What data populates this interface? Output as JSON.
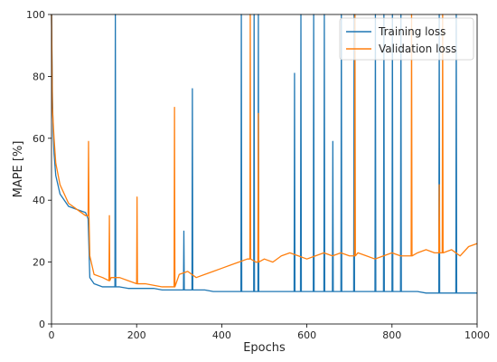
{
  "chart_data": {
    "type": "line",
    "xlabel": "Epochs",
    "ylabel": "MAPE [%]",
    "xlim": [
      0,
      1000
    ],
    "ylim": [
      0,
      100
    ],
    "xticks": [
      "0",
      "200",
      "400",
      "600",
      "800",
      "1000"
    ],
    "yticks": [
      "0",
      "20",
      "40",
      "60",
      "80",
      "100"
    ],
    "grid": false,
    "legend_position": "top-right",
    "series": [
      {
        "name": "Training loss",
        "color": "#1f77b4",
        "x": [
          0,
          2,
          4,
          6,
          10,
          20,
          40,
          60,
          80,
          86,
          90,
          100,
          120,
          140,
          149,
          150,
          151,
          160,
          180,
          200,
          220,
          240,
          260,
          280,
          300,
          310,
          311,
          312,
          320,
          330,
          331,
          332,
          340,
          360,
          380,
          400,
          420,
          440,
          445,
          446,
          447,
          450,
          460,
          470,
          475,
          476,
          477,
          480,
          485,
          486,
          487,
          490,
          500,
          520,
          540,
          560,
          570,
          571,
          572,
          580,
          585,
          586,
          587,
          590,
          600,
          610,
          615,
          616,
          617,
          620,
          630,
          640,
          641,
          642,
          650,
          660,
          661,
          662,
          670,
          680,
          681,
          682,
          690,
          700,
          710,
          711,
          712,
          720,
          740,
          760,
          761,
          762,
          770,
          780,
          781,
          782,
          790,
          800,
          801,
          802,
          810,
          820,
          821,
          822,
          830,
          840,
          850,
          860,
          880,
          900,
          910,
          911,
          912,
          920,
          940,
          950,
          951,
          952,
          960,
          980,
          1000
        ],
        "values": [
          100,
          75,
          62,
          55,
          48,
          42,
          38,
          37,
          36,
          34,
          15,
          13,
          12,
          12,
          12,
          100,
          12,
          12,
          11.5,
          11.5,
          11.5,
          11.5,
          11,
          11,
          11,
          11,
          30,
          11,
          11,
          11,
          76,
          11,
          11,
          11,
          10.5,
          10.5,
          10.5,
          10.5,
          10.5,
          100,
          10.5,
          10.5,
          10.5,
          10.5,
          10.5,
          100,
          10.5,
          10.5,
          10.5,
          100,
          10.5,
          10.5,
          10.5,
          10.5,
          10.5,
          10.5,
          10.5,
          81,
          10.5,
          10.5,
          10.5,
          100,
          10.5,
          10.5,
          10.5,
          10.5,
          10.5,
          100,
          10.5,
          10.5,
          10.5,
          10.5,
          100,
          10.5,
          10.5,
          10.5,
          59,
          10.5,
          10.5,
          10.5,
          100,
          10.5,
          10.5,
          10.5,
          10.5,
          100,
          10.5,
          10.5,
          10.5,
          10.5,
          100,
          10.5,
          10.5,
          10.5,
          100,
          10.5,
          10.5,
          10.5,
          100,
          10.5,
          10.5,
          10.5,
          100,
          10.5,
          10.5,
          10.5,
          10.5,
          10.5,
          10,
          10,
          10,
          100,
          10,
          10,
          10,
          10,
          100,
          10,
          10,
          10,
          10
        ]
      },
      {
        "name": "Validation loss",
        "color": "#ff7f0e",
        "x": [
          0,
          2,
          4,
          6,
          10,
          20,
          40,
          60,
          80,
          86,
          87,
          88,
          90,
          100,
          120,
          135,
          136,
          137,
          140,
          160,
          180,
          200,
          201,
          202,
          220,
          240,
          260,
          280,
          288,
          289,
          290,
          300,
          320,
          340,
          360,
          380,
          400,
          420,
          440,
          460,
          466,
          467,
          468,
          480,
          485,
          486,
          487,
          500,
          520,
          540,
          560,
          580,
          600,
          620,
          640,
          660,
          680,
          700,
          712,
          713,
          714,
          720,
          740,
          760,
          780,
          800,
          820,
          840,
          845,
          846,
          847,
          860,
          880,
          900,
          910,
          911,
          912,
          918,
          919,
          920,
          940,
          960,
          980,
          1000
        ],
        "values": [
          100,
          70,
          65,
          60,
          52,
          45,
          39,
          37,
          35,
          35,
          59,
          35,
          22,
          16,
          15,
          14,
          35,
          14,
          15,
          15,
          14,
          13,
          41,
          13,
          13,
          12.5,
          12,
          12,
          12,
          70,
          12,
          16,
          17,
          15,
          16,
          17,
          18,
          19,
          20,
          21,
          21,
          100,
          21,
          20,
          20,
          68,
          20,
          21,
          20,
          22,
          23,
          22,
          21,
          22,
          23,
          22,
          23,
          22,
          22,
          100,
          22,
          23,
          22,
          21,
          22,
          23,
          22,
          22,
          22,
          100,
          22,
          23,
          24,
          23,
          23,
          45,
          23,
          23,
          100,
          23,
          24,
          22,
          25,
          26
        ]
      }
    ]
  }
}
